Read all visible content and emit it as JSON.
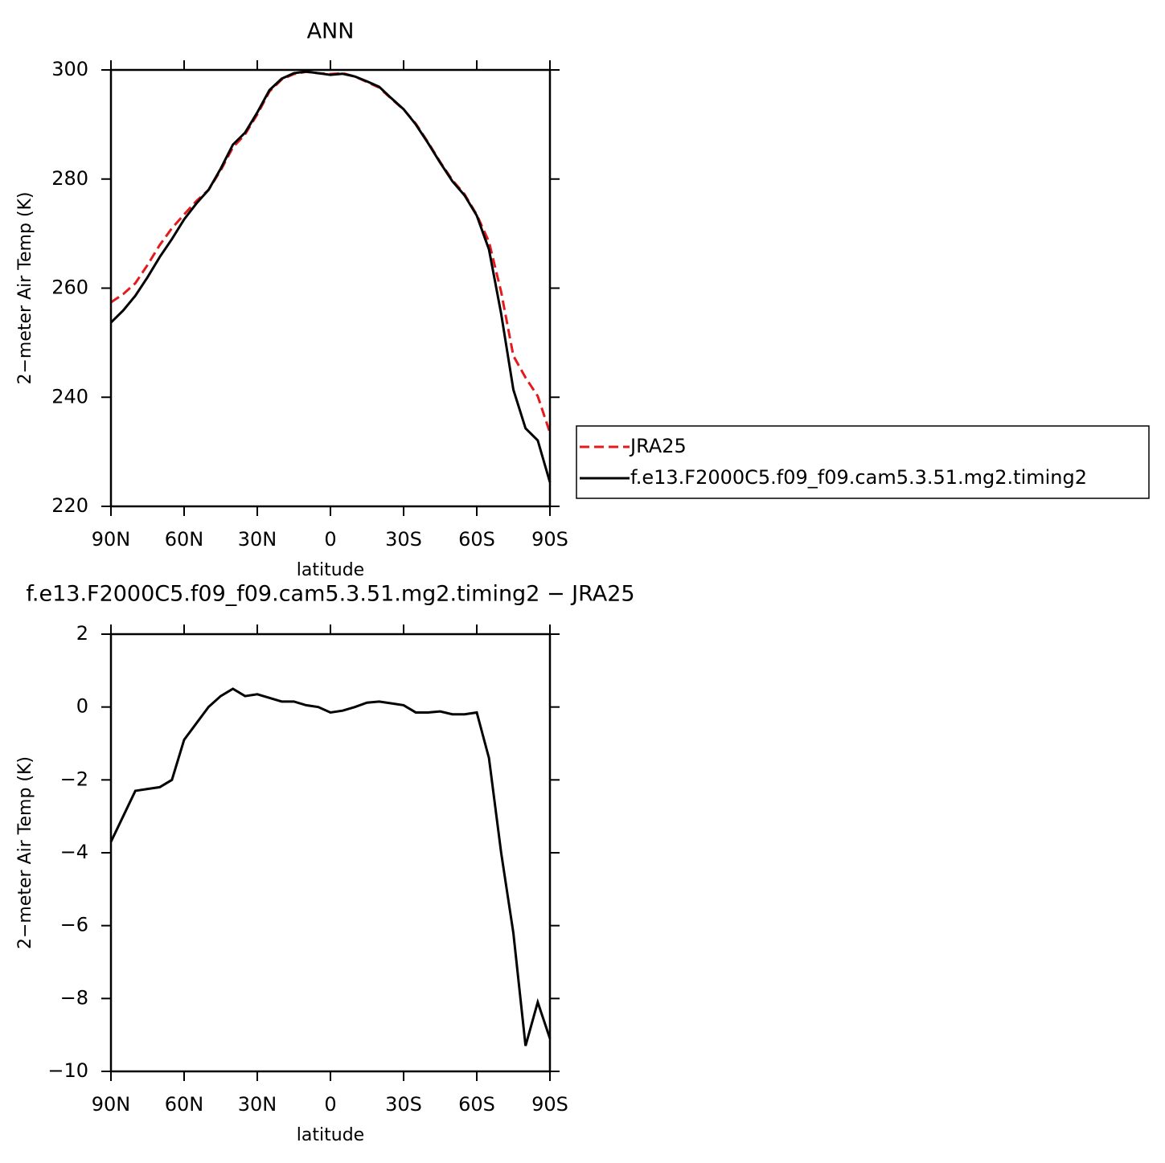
{
  "chart_data": [
    {
      "type": "line",
      "title": "ANN",
      "x_label": "latitude",
      "y_label": "2−meter Air Temp (K)",
      "x": [
        90,
        85,
        80,
        75,
        70,
        65,
        60,
        55,
        50,
        45,
        40,
        35,
        30,
        25,
        20,
        15,
        10,
        5,
        0,
        -5,
        -10,
        -15,
        -20,
        -25,
        -30,
        -35,
        -40,
        -45,
        -50,
        -55,
        -60,
        -65,
        -70,
        -75,
        -80,
        -85,
        -90
      ],
      "xlim": [
        90,
        -90
      ],
      "xticks": [
        {
          "value": 90,
          "label": "90N"
        },
        {
          "value": 60,
          "label": "60N"
        },
        {
          "value": 30,
          "label": "30N"
        },
        0,
        {
          "value": -30,
          "label": "30S"
        },
        {
          "value": -60,
          "label": "60S"
        },
        {
          "value": -90,
          "label": "90S"
        }
      ],
      "ylim": [
        220,
        300
      ],
      "yticks": [
        220,
        240,
        260,
        280,
        300
      ],
      "legend": "right",
      "series": [
        {
          "name": "JRA25",
          "color": "#e41a1c",
          "dash": "dashed",
          "values": [
            257.4,
            258.9,
            260.9,
            264.25,
            267.9,
            271,
            273.5,
            275.95,
            278,
            281.6,
            285.8,
            288.2,
            291.85,
            296.05,
            298.25,
            299.25,
            299.65,
            299.4,
            299.25,
            299.4,
            298.8,
            297.78,
            296.75,
            294.7,
            292.75,
            290.15,
            286.75,
            283.12,
            279.8,
            277.2,
            273.45,
            268.5,
            259.3,
            247.6,
            243.6,
            240.2,
            233.5
          ]
        },
        {
          "name": "f.e13.F2000C5.f09_f09.cam5.3.51.mg2.timing2",
          "color": "#000000",
          "dash": "solid",
          "values": [
            253.7,
            255.9,
            258.6,
            262,
            265.7,
            269,
            272.6,
            275.5,
            278,
            281.9,
            286.3,
            288.5,
            292.2,
            296.3,
            298.4,
            299.4,
            299.7,
            299.4,
            299.1,
            299.3,
            298.8,
            297.9,
            296.9,
            294.8,
            292.8,
            290,
            286.6,
            283,
            279.6,
            277,
            273.3,
            267.1,
            255.3,
            241.4,
            234.3,
            232.1,
            224.4
          ]
        }
      ]
    },
    {
      "type": "line",
      "title": "f.e13.F2000C5.f09_f09.cam5.3.51.mg2.timing2 − JRA25",
      "x_label": "latitude",
      "y_label": "2−meter Air Temp (K)",
      "x": [
        90,
        85,
        80,
        75,
        70,
        65,
        60,
        55,
        50,
        45,
        40,
        35,
        30,
        25,
        20,
        15,
        10,
        5,
        0,
        -5,
        -10,
        -15,
        -20,
        -25,
        -30,
        -35,
        -40,
        -45,
        -50,
        -55,
        -60,
        -65,
        -70,
        -75,
        -80,
        -85,
        -90
      ],
      "xlim": [
        90,
        -90
      ],
      "xticks": [
        {
          "value": 90,
          "label": "90N"
        },
        {
          "value": 60,
          "label": "60N"
        },
        {
          "value": 30,
          "label": "30N"
        },
        0,
        {
          "value": -30,
          "label": "30S"
        },
        {
          "value": -60,
          "label": "60S"
        },
        {
          "value": -90,
          "label": "90S"
        }
      ],
      "ylim": [
        -10,
        2
      ],
      "yticks": [
        {
          "value": -10,
          "label": "−10"
        },
        {
          "value": -8,
          "label": "−8"
        },
        {
          "value": -6,
          "label": "−6"
        },
        {
          "value": -4,
          "label": "−4"
        },
        {
          "value": -2,
          "label": "−2"
        },
        0,
        2
      ],
      "series": [
        {
          "color": "#000000",
          "dash": "solid",
          "values": [
            -3.7,
            -3.0,
            -2.3,
            -2.25,
            -2.2,
            -2.0,
            -0.9,
            -0.45,
            0.0,
            0.3,
            0.5,
            0.3,
            0.35,
            0.25,
            0.15,
            0.15,
            0.05,
            0.0,
            -0.15,
            -0.1,
            0.0,
            0.12,
            0.15,
            0.1,
            0.05,
            -0.15,
            -0.15,
            -0.12,
            -0.2,
            -0.2,
            -0.15,
            -1.4,
            -4.0,
            -6.2,
            -9.3,
            -8.1,
            -9.1
          ]
        }
      ]
    }
  ]
}
